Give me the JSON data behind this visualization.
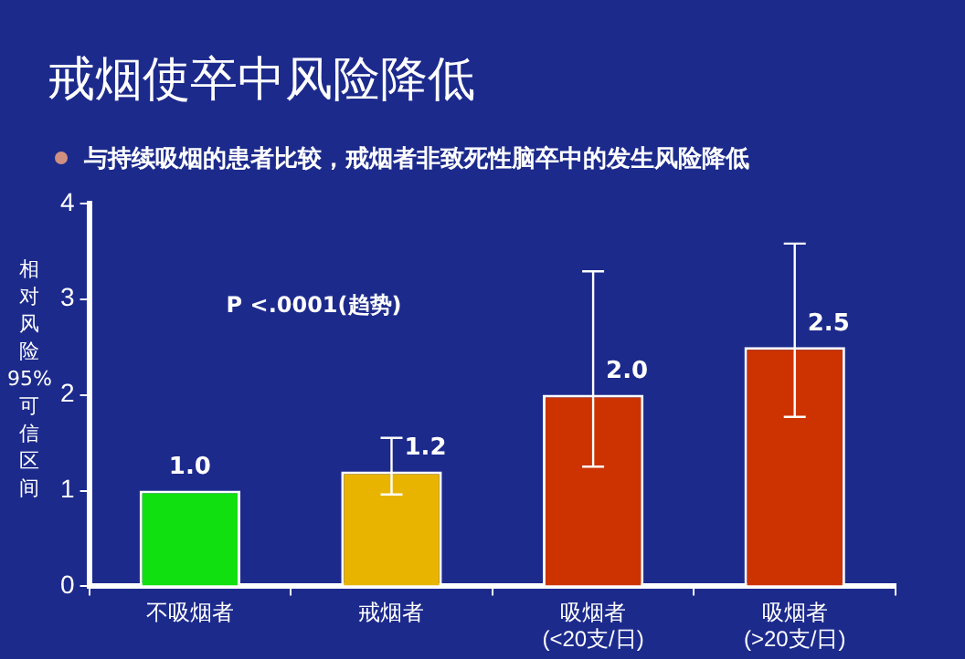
{
  "chart_data": {
    "type": "bar",
    "title": "戒烟使卒中风险降低",
    "subtitle": "与持续吸烟的患者比较，戒烟者非致死性脑卒中的发生风险降低",
    "ylabel": "相对风险95%可信区间",
    "categories": [
      "不吸烟者",
      "戒烟者",
      "吸烟者\n(<20支/日)",
      "吸烟者\n(>20支/日)"
    ],
    "values": [
      1.0,
      1.2,
      2.0,
      2.5
    ],
    "colors": [
      "#10e010",
      "#e8b400",
      "#cc3300",
      "#cc3300"
    ],
    "errors": [
      null,
      [
        0.96,
        1.55
      ],
      [
        1.25,
        3.29
      ],
      [
        1.77,
        3.58
      ]
    ],
    "value_labels": [
      "1.0",
      "1.2",
      "2.0",
      "2.5"
    ],
    "ylim": [
      0,
      4
    ],
    "yticks": [
      0,
      1,
      2,
      3,
      4
    ],
    "grid": false,
    "legend": false,
    "annotations": [
      "P <.0001(趋势)"
    ]
  }
}
